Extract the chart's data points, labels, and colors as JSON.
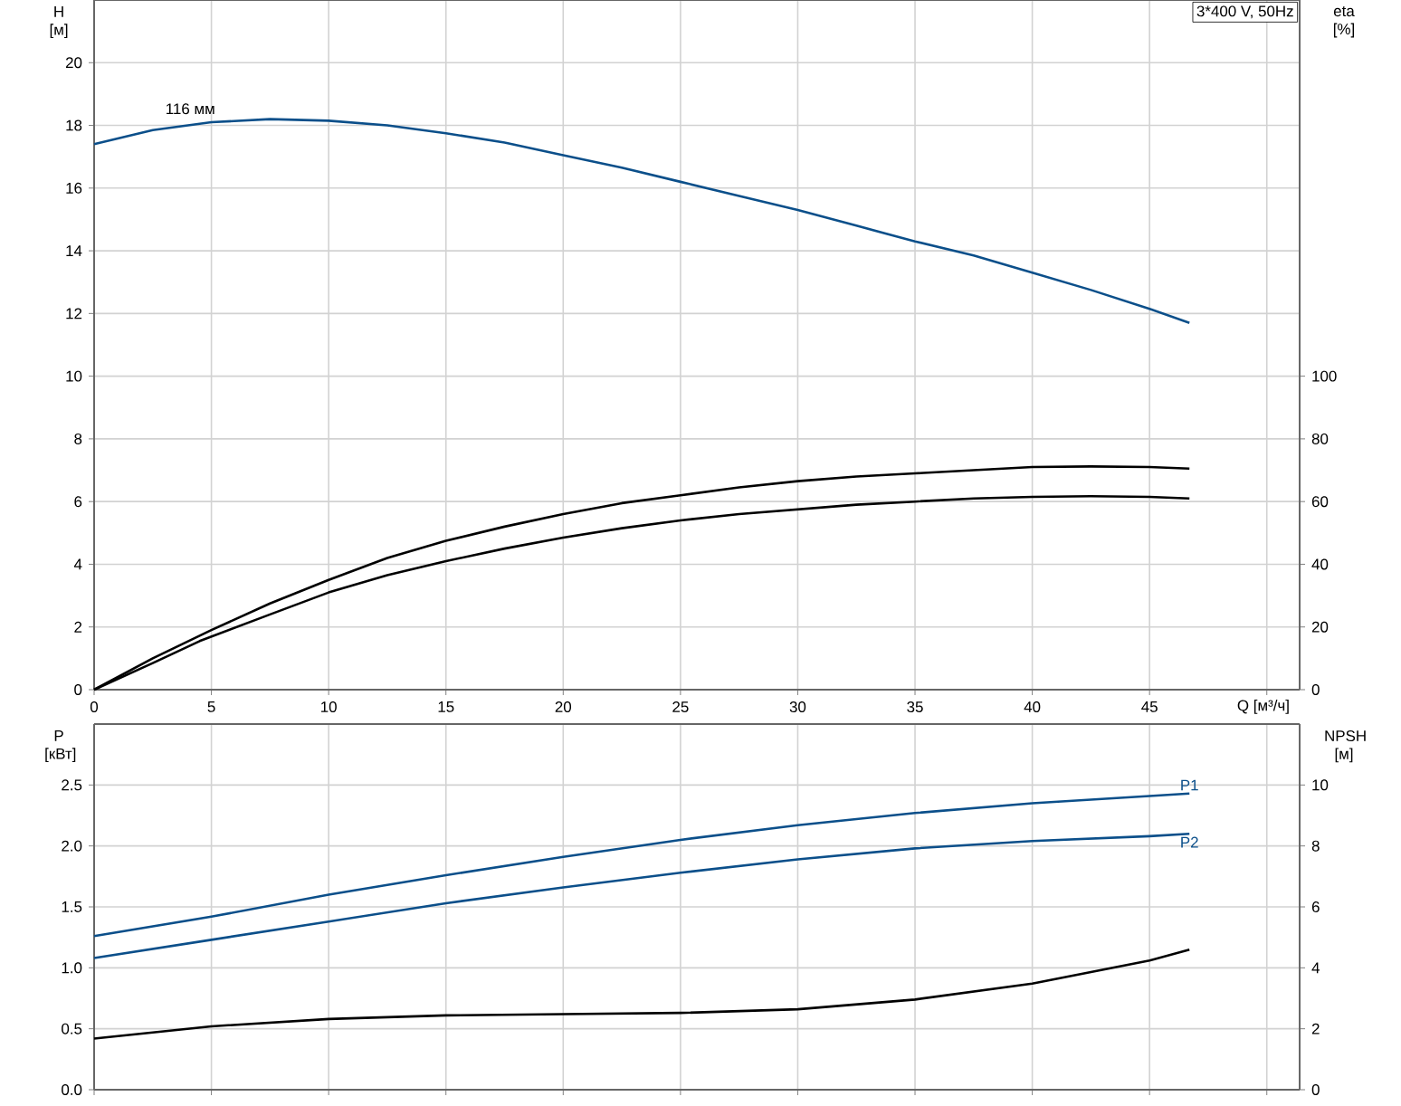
{
  "chart_data": [
    {
      "type": "line",
      "title": "3*400 V, 50Hz",
      "xlabel": "Q [м³/ч]",
      "ylabel": "H [м]",
      "y2label": "eta [%]",
      "xlim": [
        0,
        51.4
      ],
      "xticks": [
        0,
        5,
        10,
        15,
        20,
        25,
        30,
        35,
        40,
        45,
        {
          "value": 50,
          "label": null
        }
      ],
      "ylim": [
        0,
        22
      ],
      "yticks": [
        0,
        2,
        4,
        6,
        8,
        10,
        12,
        14,
        16,
        18,
        20
      ],
      "y2lim": [
        0,
        220
      ],
      "y2ticks": [
        0,
        20,
        40,
        60,
        80,
        100
      ],
      "grid": true,
      "marker": "none",
      "line_style": "solid",
      "annotations": [
        {
          "text": "116 мм",
          "x": 4.1,
          "y": 18.2
        }
      ],
      "series": [
        {
          "color": "#0b4f8a",
          "x": [
            0,
            2.5,
            5,
            7.5,
            10,
            12.5,
            15,
            17.5,
            20,
            22.5,
            25,
            27.5,
            30,
            32.5,
            35,
            37.5,
            40,
            42.5,
            45,
            46.7
          ],
          "values": [
            17.4,
            17.85,
            18.1,
            18.2,
            18.15,
            18.0,
            17.75,
            17.45,
            17.05,
            16.65,
            16.2,
            15.75,
            15.3,
            14.8,
            14.3,
            13.85,
            13.3,
            12.75,
            12.15,
            11.7
          ]
        },
        {
          "color": "#000000",
          "axis": "y2",
          "x": [
            0,
            2.5,
            5,
            7.5,
            10,
            12.5,
            15,
            17.5,
            20,
            22.5,
            25,
            27.5,
            30,
            32.5,
            35,
            37.5,
            40,
            42.5,
            45,
            46.7
          ],
          "values": [
            0,
            10,
            19,
            27.5,
            35,
            42,
            47.5,
            52,
            56,
            59.5,
            62,
            64.5,
            66.5,
            68,
            69,
            70,
            71,
            71.2,
            71,
            70.5
          ]
        },
        {
          "color": "#000000",
          "axis": "y2",
          "x": [
            0,
            2.5,
            4.5,
            7.5,
            10,
            12.5,
            15,
            17.5,
            20,
            22.5,
            25,
            27.5,
            30,
            32.5,
            35,
            37.5,
            40,
            42.5,
            45,
            46.7
          ],
          "values": [
            0,
            8.5,
            15.5,
            24,
            31,
            36.5,
            41,
            45,
            48.5,
            51.5,
            54,
            56,
            57.5,
            59,
            60,
            61,
            61.5,
            61.7,
            61.5,
            61
          ]
        }
      ]
    },
    {
      "type": "line",
      "ylabel": "P [кВт]",
      "y2label": "NPSH [м]",
      "xlim": [
        0,
        51.4
      ],
      "xticks": [
        0,
        5,
        10,
        15,
        20,
        25,
        30,
        35,
        40,
        45,
        50
      ],
      "ylim": [
        0,
        3.0
      ],
      "yticks": [
        {
          "value": 0,
          "label": "0.0"
        },
        0.5,
        {
          "value": 1,
          "label": "1.0"
        },
        1.5,
        {
          "value": 2,
          "label": "2.0"
        },
        2.5
      ],
      "y2lim": [
        0,
        12
      ],
      "y2ticks": [
        0,
        2,
        4,
        6,
        8,
        10
      ],
      "grid": true,
      "marker": "none",
      "line_style": "solid",
      "tick_labels": "y",
      "series": [
        {
          "name": "P1",
          "color": "#0b4f8a",
          "x": [
            0,
            5,
            10,
            15,
            20,
            25,
            30,
            35,
            40,
            45,
            46.7
          ],
          "values": [
            1.26,
            1.42,
            1.6,
            1.76,
            1.91,
            2.05,
            2.17,
            2.27,
            2.35,
            2.41,
            2.43
          ]
        },
        {
          "name": "P2",
          "color": "#0b4f8a",
          "x": [
            0,
            5,
            10,
            15,
            20,
            25,
            30,
            35,
            40,
            45,
            46.7
          ],
          "values": [
            1.08,
            1.23,
            1.38,
            1.53,
            1.66,
            1.78,
            1.89,
            1.98,
            2.04,
            2.08,
            2.1
          ]
        },
        {
          "color": "#000000",
          "axis": "y2",
          "x": [
            0,
            5,
            10,
            15,
            20,
            25,
            30,
            35,
            40,
            45,
            46.7
          ],
          "values": [
            1.68,
            2.08,
            2.32,
            2.44,
            2.48,
            2.52,
            2.64,
            2.96,
            3.48,
            4.24,
            4.6
          ]
        }
      ]
    }
  ]
}
